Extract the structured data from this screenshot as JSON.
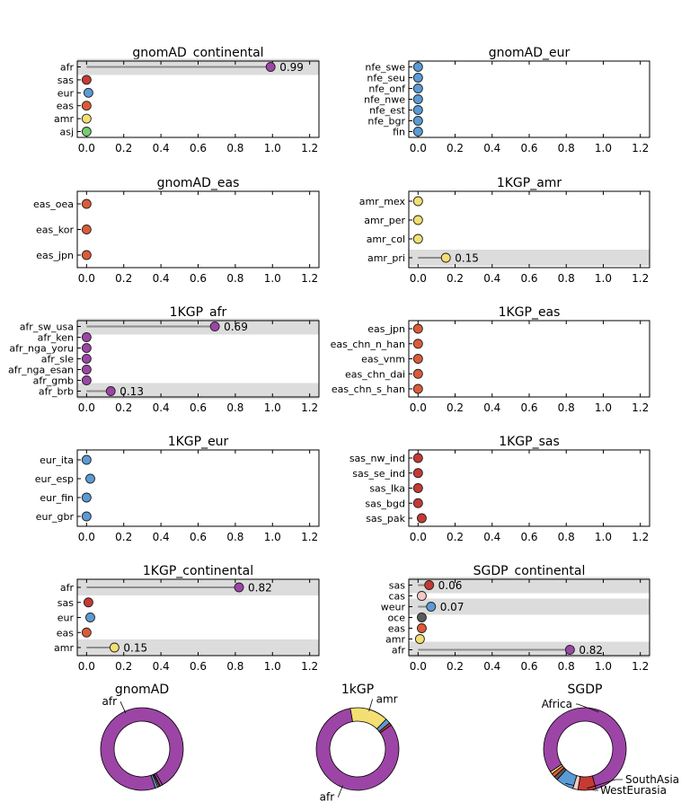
{
  "colors": {
    "afr": "#9c45a6",
    "sas": "#c53a32",
    "eur": "#5b9bd5",
    "eas": "#dc5b37",
    "amr": "#f4df72",
    "asj": "#77cc72",
    "cas": "#f5cac6",
    "oce": "#5a5a5a",
    "stem": "#8c8c8c",
    "band": "#dcdcdc"
  },
  "xaxis": {
    "range": [
      -0.05,
      1.25
    ],
    "ticks": [
      "0.0",
      "0.2",
      "0.4",
      "0.6",
      "0.8",
      "1.0",
      "1.2"
    ]
  },
  "chart_data": [
    {
      "type": "scatter",
      "title": "gnomAD_continental",
      "categories": [
        "afr",
        "sas",
        "eur",
        "eas",
        "amr",
        "asj"
      ],
      "values": [
        0.99,
        0.0,
        0.01,
        0.0,
        0.0,
        0.0
      ],
      "group": [
        "afr",
        "sas",
        "eur",
        "eas",
        "amr",
        "asj"
      ],
      "labels": [
        "0.99",
        "",
        "",
        "",
        "",
        ""
      ],
      "highlight": [
        true,
        false,
        false,
        false,
        false,
        false
      ]
    },
    {
      "type": "scatter",
      "title": "gnomAD_eur",
      "categories": [
        "nfe_swe",
        "nfe_seu",
        "nfe_onf",
        "nfe_nwe",
        "nfe_est",
        "nfe_bgr",
        "fin"
      ],
      "values": [
        0.0,
        0.0,
        0.0,
        0.0,
        0.0,
        0.0,
        0.0
      ],
      "group": [
        "eur",
        "eur",
        "eur",
        "eur",
        "eur",
        "eur",
        "eur"
      ],
      "labels": [
        "",
        "",
        "",
        "",
        "",
        "",
        ""
      ],
      "highlight": [
        false,
        false,
        false,
        false,
        false,
        false,
        false
      ]
    },
    {
      "type": "scatter",
      "title": "gnomAD_eas",
      "categories": [
        "eas_oea",
        "eas_kor",
        "eas_jpn"
      ],
      "values": [
        0.0,
        0.0,
        0.0
      ],
      "group": [
        "eas",
        "eas",
        "eas"
      ],
      "labels": [
        "",
        "",
        ""
      ],
      "highlight": [
        false,
        false,
        false
      ]
    },
    {
      "type": "scatter",
      "title": "1KGP_amr",
      "categories": [
        "amr_mex",
        "amr_per",
        "amr_col",
        "amr_pri"
      ],
      "values": [
        0.0,
        0.0,
        0.0,
        0.15
      ],
      "group": [
        "amr",
        "amr",
        "amr",
        "amr"
      ],
      "labels": [
        "",
        "",
        "",
        "0.15"
      ],
      "highlight": [
        false,
        false,
        false,
        true
      ]
    },
    {
      "type": "scatter",
      "title": "1KGP_afr",
      "categories": [
        "afr_sw_usa",
        "afr_ken",
        "afr_nga_yoru",
        "afr_sle",
        "afr_nga_esan",
        "afr_gmb",
        "afr_brb"
      ],
      "values": [
        0.69,
        0.0,
        0.0,
        0.0,
        0.0,
        0.0,
        0.13
      ],
      "group": [
        "afr",
        "afr",
        "afr",
        "afr",
        "afr",
        "afr",
        "afr"
      ],
      "labels": [
        "0.69",
        "",
        "",
        "",
        "",
        "",
        "0.13"
      ],
      "highlight": [
        true,
        false,
        false,
        false,
        false,
        false,
        true
      ]
    },
    {
      "type": "scatter",
      "title": "1KGP_eas",
      "categories": [
        "eas_jpn",
        "eas_chn_n_han",
        "eas_vnm",
        "eas_chn_dai",
        "eas_chn_s_han"
      ],
      "values": [
        0.0,
        0.0,
        0.0,
        0.0,
        0.0
      ],
      "group": [
        "eas",
        "eas",
        "eas",
        "eas",
        "eas"
      ],
      "labels": [
        "",
        "",
        "",
        "",
        ""
      ],
      "highlight": [
        false,
        false,
        false,
        false,
        false
      ]
    },
    {
      "type": "scatter",
      "title": "1KGP_eur",
      "categories": [
        "eur_ita",
        "eur_esp",
        "eur_fin",
        "eur_gbr"
      ],
      "values": [
        0.0,
        0.02,
        0.0,
        0.0
      ],
      "group": [
        "eur",
        "eur",
        "eur",
        "eur"
      ],
      "labels": [
        "",
        "",
        "",
        ""
      ],
      "highlight": [
        false,
        false,
        false,
        false
      ]
    },
    {
      "type": "scatter",
      "title": "1KGP_sas",
      "categories": [
        "sas_nw_ind",
        "sas_se_ind",
        "sas_lka",
        "sas_bgd",
        "sas_pak"
      ],
      "values": [
        0.0,
        0.0,
        0.0,
        0.0,
        0.02
      ],
      "group": [
        "sas",
        "sas",
        "sas",
        "sas",
        "sas"
      ],
      "labels": [
        "",
        "",
        "",
        "",
        ""
      ],
      "highlight": [
        false,
        false,
        false,
        false,
        false
      ]
    },
    {
      "type": "scatter",
      "title": "1KGP_continental",
      "categories": [
        "afr",
        "sas",
        "eur",
        "eas",
        "amr"
      ],
      "values": [
        0.82,
        0.01,
        0.02,
        0.0,
        0.15
      ],
      "group": [
        "afr",
        "sas",
        "eur",
        "eas",
        "amr"
      ],
      "labels": [
        "0.82",
        "",
        "",
        "",
        "0.15"
      ],
      "highlight": [
        true,
        false,
        false,
        false,
        true
      ]
    },
    {
      "type": "scatter",
      "title": "SGDP_continental",
      "categories": [
        "sas",
        "cas",
        "weur",
        "oce",
        "eas",
        "amr",
        "afr"
      ],
      "values": [
        0.06,
        0.02,
        0.07,
        0.02,
        0.02,
        0.01,
        0.82
      ],
      "group": [
        "sas",
        "cas",
        "eur",
        "oce",
        "eas",
        "amr",
        "afr"
      ],
      "labels": [
        "0.06",
        "",
        "0.07",
        "",
        "",
        "",
        "0.82"
      ],
      "highlight": [
        true,
        false,
        true,
        false,
        false,
        false,
        true
      ]
    },
    {
      "type": "pie",
      "title": "gnomAD",
      "slices": [
        {
          "group": "afr",
          "value": 0.97,
          "label": "afr"
        },
        {
          "group": "eur",
          "value": 0.01,
          "label": ""
        },
        {
          "group": "amr",
          "value": 0.005,
          "label": ""
        },
        {
          "group": "sas",
          "value": 0.005,
          "label": ""
        },
        {
          "group": "afr",
          "value": 0.01,
          "label": ""
        }
      ]
    },
    {
      "type": "pie",
      "title": "1kGP",
      "slices": [
        {
          "group": "sas",
          "value": 0.01,
          "label": ""
        },
        {
          "group": "eur",
          "value": 0.02,
          "label": ""
        },
        {
          "group": "amr",
          "value": 0.15,
          "label": "amr"
        },
        {
          "group": "afr",
          "value": 0.82,
          "label": "afr"
        }
      ]
    },
    {
      "type": "pie",
      "title": "SGDP",
      "slices": [
        {
          "group": "afr",
          "value": 0.8,
          "label": "Africa"
        },
        {
          "group": "amr",
          "value": 0.01,
          "label": ""
        },
        {
          "group": "eas",
          "value": 0.015,
          "label": ""
        },
        {
          "group": "oce",
          "value": 0.015,
          "label": ""
        },
        {
          "group": "eur",
          "value": 0.07,
          "label": "WestEurasia"
        },
        {
          "group": "cas",
          "value": 0.02,
          "label": ""
        },
        {
          "group": "sas",
          "value": 0.07,
          "label": "SouthAsia"
        }
      ]
    }
  ]
}
